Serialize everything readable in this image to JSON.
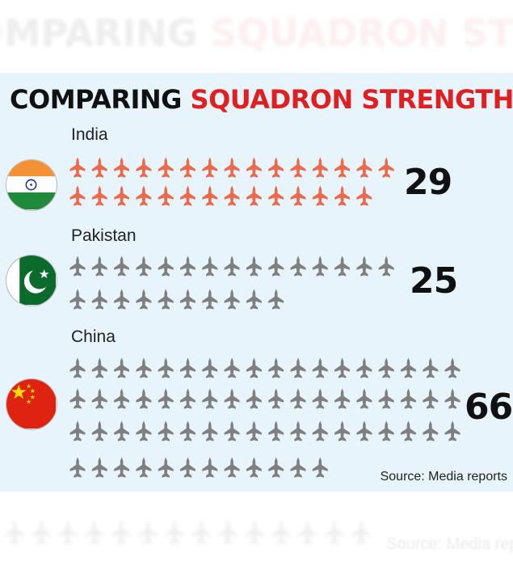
{
  "header": {
    "title_part1": "COMPARING",
    "title_part2": "SQUADRON STRENGTH"
  },
  "countries": [
    {
      "name": "India",
      "flag": "india-flag",
      "squadrons": 29
    },
    {
      "name": "Pakistan",
      "flag": "pakistan-flag",
      "squadrons": 25
    },
    {
      "name": "China",
      "flag": "china-flag",
      "squadrons": 66
    }
  ],
  "chart_data": {
    "type": "bar",
    "title": "COMPARING SQUADRON STRENGTH",
    "categories": [
      "India",
      "Pakistan",
      "China"
    ],
    "values": [
      29,
      25,
      66
    ],
    "unit_icon": "fighter-jet-icon",
    "icon_colors": {
      "India": "#ec6a4c",
      "Pakistan": "#7f7f7f",
      "China": "#7f7f7f"
    }
  },
  "source": "Source: Media reports",
  "colors": {
    "accent_red": "#e02020",
    "panel_bg": "#e8f4fc",
    "india_jet": "#ec6a4c",
    "other_jet": "#7f7f7f"
  }
}
